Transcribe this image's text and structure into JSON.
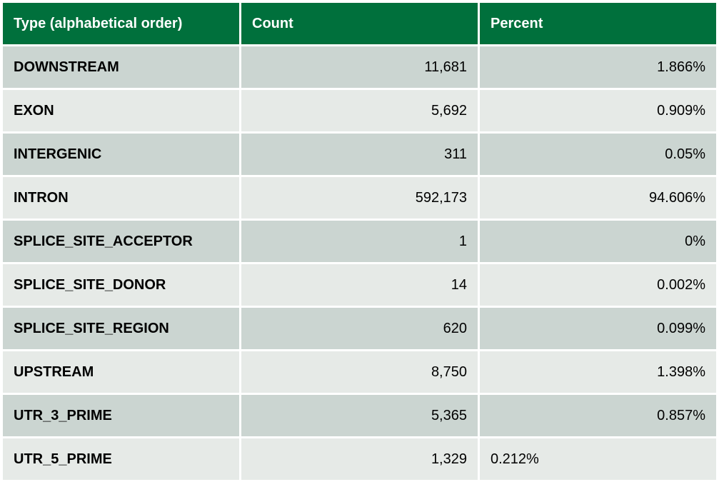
{
  "table": {
    "headers": {
      "type": "Type (alphabetical order)",
      "count": "Count",
      "percent": "Percent"
    },
    "rows": [
      {
        "type": "DOWNSTREAM",
        "count": "11,681",
        "percent": "1.866%"
      },
      {
        "type": "EXON",
        "count": "5,692",
        "percent": "0.909%"
      },
      {
        "type": "INTERGENIC",
        "count": "311",
        "percent": "0.05%"
      },
      {
        "type": "INTRON",
        "count": "592,173",
        "percent": "94.606%"
      },
      {
        "type": "SPLICE_SITE_ACCEPTOR",
        "count": "1",
        "percent": "0%"
      },
      {
        "type": "SPLICE_SITE_DONOR",
        "count": "14",
        "percent": "0.002%"
      },
      {
        "type": "SPLICE_SITE_REGION",
        "count": "620",
        "percent": "0.099%"
      },
      {
        "type": "UPSTREAM",
        "count": "8,750",
        "percent": "1.398%"
      },
      {
        "type": "UTR_3_PRIME",
        "count": "5,365",
        "percent": "0.857%"
      },
      {
        "type": "UTR_5_PRIME",
        "count": "1,329",
        "percent": "0.212%"
      }
    ]
  },
  "colors": {
    "header_bg": "#00703c",
    "row_dark_bg": "#cbd5d1",
    "row_light_bg": "#e6eae7"
  }
}
